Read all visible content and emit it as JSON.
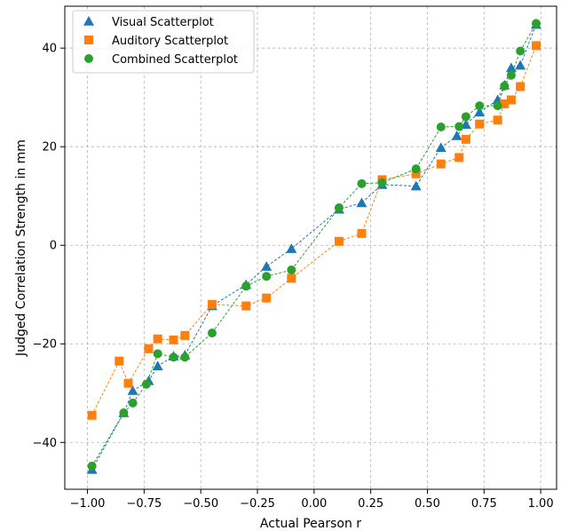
{
  "chart_data": {
    "type": "scatter",
    "xlabel": "Actual Pearson r",
    "ylabel": "Judged Correlation Strength in mm",
    "xlim": [
      -1.1,
      1.07
    ],
    "ylim": [
      -49.5,
      48.5
    ],
    "xticks": [
      -1.0,
      -0.75,
      -0.5,
      -0.25,
      0.0,
      0.25,
      0.5,
      0.75,
      1.0
    ],
    "xtick_labels": [
      "−1.00",
      "−0.75",
      "−0.50",
      "−0.25",
      "0.00",
      "0.25",
      "0.50",
      "0.75",
      "1.00"
    ],
    "yticks": [
      -40,
      -20,
      0,
      20,
      40
    ],
    "ytick_labels": [
      "−40",
      "−20",
      "0",
      "20",
      "40"
    ],
    "grid": true,
    "legend_position": "top-left",
    "series": [
      {
        "name": "Visual Scatterplot",
        "color": "#1f77b4",
        "marker": "triangle",
        "x": [
          -0.98,
          -0.84,
          -0.8,
          -0.73,
          -0.69,
          -0.62,
          -0.57,
          -0.45,
          -0.3,
          -0.21,
          -0.1,
          0.11,
          0.21,
          0.3,
          0.45,
          0.56,
          0.63,
          0.67,
          0.73,
          0.81,
          0.84,
          0.87,
          0.91,
          0.98
        ],
        "y": [
          -45.5,
          -34,
          -29.5,
          -27.5,
          -24.5,
          -22.5,
          -22.3,
          -12.3,
          -8,
          -4.3,
          -0.7,
          7.3,
          8.6,
          12.3,
          12,
          19.8,
          22.2,
          24.5,
          27,
          29.5,
          32.5,
          36,
          36.5,
          44.8
        ]
      },
      {
        "name": "Auditory Scatterplot",
        "color": "#ff7f0e",
        "marker": "square",
        "x": [
          -0.98,
          -0.86,
          -0.82,
          -0.73,
          -0.69,
          -0.62,
          -0.57,
          -0.45,
          -0.3,
          -0.21,
          -0.1,
          0.11,
          0.21,
          0.3,
          0.45,
          0.56,
          0.64,
          0.67,
          0.73,
          0.81,
          0.84,
          0.87,
          0.91,
          0.98
        ],
        "y": [
          -34.5,
          -23.5,
          -28,
          -21,
          -19,
          -19.2,
          -18.3,
          -12,
          -12.3,
          -10.7,
          -6.7,
          0.8,
          2.4,
          13.3,
          14.5,
          16.5,
          17.8,
          21.5,
          24.6,
          25.4,
          28.7,
          29.5,
          32.2,
          40.5
        ]
      },
      {
        "name": "Combined Scatterplot",
        "color": "#2ca02c",
        "marker": "circle",
        "x": [
          -0.98,
          -0.84,
          -0.8,
          -0.74,
          -0.69,
          -0.62,
          -0.57,
          -0.45,
          -0.3,
          -0.21,
          -0.1,
          0.11,
          0.21,
          0.3,
          0.45,
          0.56,
          0.64,
          0.67,
          0.73,
          0.81,
          0.84,
          0.87,
          0.91,
          0.98
        ],
        "y": [
          -44.8,
          -34,
          -32,
          -28.2,
          -22,
          -22.7,
          -22.7,
          -17.8,
          -8.3,
          -6.3,
          -5,
          7.6,
          12.5,
          12.7,
          15.5,
          24,
          24.1,
          26.1,
          28.3,
          28.3,
          32.3,
          34.5,
          39.4,
          45
        ]
      }
    ]
  }
}
